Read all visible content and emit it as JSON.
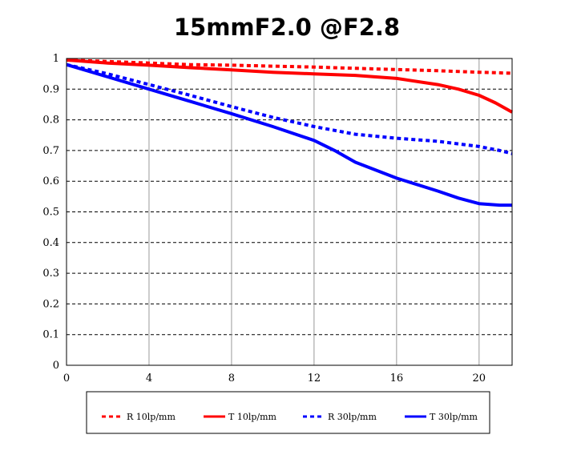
{
  "chart_data": {
    "type": "line",
    "title": "15mmF2.0 @F2.8",
    "xlabel": "",
    "ylabel": "",
    "xlim": [
      0,
      21.6
    ],
    "ylim": [
      0,
      1
    ],
    "x_ticks": [
      "0",
      "4",
      "8",
      "12",
      "16",
      "20"
    ],
    "y_ticks": [
      "0",
      "0.1",
      "0.2",
      "0.3",
      "0.4",
      "0.5",
      "0.6",
      "0.7",
      "0.8",
      "0.9",
      "1"
    ],
    "grid": true,
    "legend_position": "bottom",
    "series": [
      {
        "name": "R 10lp/mm",
        "color": "#ff0000",
        "style": "dashed",
        "x": [
          0,
          2,
          4,
          6,
          8,
          10,
          12,
          14,
          16,
          18,
          20,
          21.6
        ],
        "y": [
          0.995,
          0.99,
          0.985,
          0.98,
          0.978,
          0.975,
          0.972,
          0.968,
          0.964,
          0.96,
          0.955,
          0.952
        ]
      },
      {
        "name": "T 10lp/mm",
        "color": "#ff0000",
        "style": "solid",
        "x": [
          0,
          2,
          4,
          6,
          8,
          10,
          12,
          14,
          16,
          18,
          19,
          20,
          20.8,
          21.6
        ],
        "y": [
          0.995,
          0.985,
          0.978,
          0.97,
          0.963,
          0.955,
          0.95,
          0.945,
          0.935,
          0.915,
          0.9,
          0.88,
          0.855,
          0.825
        ]
      },
      {
        "name": "R 30lp/mm",
        "color": "#0000ff",
        "style": "dashed",
        "x": [
          0,
          2,
          4,
          6,
          8,
          10,
          12,
          14,
          16,
          18,
          20,
          21,
          21.6
        ],
        "y": [
          0.98,
          0.95,
          0.915,
          0.88,
          0.843,
          0.808,
          0.778,
          0.753,
          0.74,
          0.73,
          0.713,
          0.7,
          0.69
        ]
      },
      {
        "name": "T 30lp/mm",
        "color": "#0000ff",
        "style": "solid",
        "x": [
          0,
          2,
          4,
          6,
          8,
          10,
          12,
          13,
          14,
          16,
          18,
          19,
          20,
          21,
          21.6
        ],
        "y": [
          0.98,
          0.94,
          0.9,
          0.86,
          0.82,
          0.778,
          0.733,
          0.7,
          0.662,
          0.61,
          0.568,
          0.545,
          0.527,
          0.522,
          0.522
        ]
      }
    ]
  }
}
